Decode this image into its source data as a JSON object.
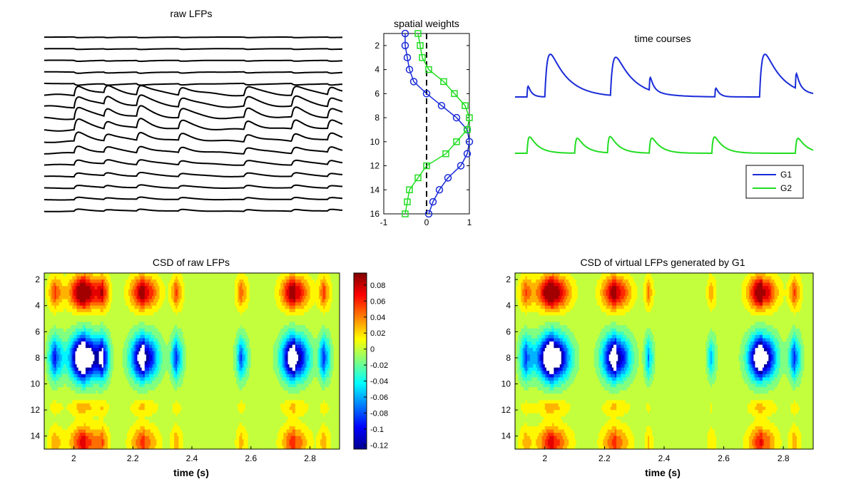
{
  "colors": {
    "g1": "#1a2bd8",
    "g2": "#22dd22",
    "lfp_trace": "#000000",
    "colormap": "jet",
    "peak_marker": "#ffffff"
  },
  "chart_data": [
    {
      "id": "raw-lfps",
      "type": "line",
      "title": "raw LFPs",
      "channels": 16,
      "axes_visible": false,
      "time_range": [
        1.9,
        2.9
      ],
      "event_times": [
        2.0,
        2.1,
        2.21,
        2.35,
        2.57,
        2.73,
        2.85
      ],
      "event_amplitudes": [
        1.0,
        0.75,
        0.95,
        0.8,
        0.85,
        0.9,
        0.8
      ]
    },
    {
      "id": "spatial-weights",
      "type": "line",
      "title": "spatial weights",
      "xlim": [
        -1,
        1
      ],
      "ylim": [
        16,
        1
      ],
      "y_reversed": true,
      "xticks": [
        "-1",
        "0",
        "1"
      ],
      "yticks": [
        "2",
        "4",
        "6",
        "8",
        "10",
        "12",
        "14",
        "16"
      ],
      "reference_line": {
        "x": 0,
        "style": "dashed"
      },
      "series": [
        {
          "name": "G1",
          "marker": "circle",
          "x": [
            -0.5,
            -0.5,
            -0.45,
            -0.4,
            -0.3,
            0.0,
            0.35,
            0.7,
            0.95,
            1.0,
            0.95,
            0.8,
            0.5,
            0.3,
            0.15,
            0.05
          ],
          "y": [
            1,
            2,
            3,
            4,
            5,
            6,
            7,
            8,
            9,
            10,
            11,
            12,
            13,
            14,
            15,
            16
          ]
        },
        {
          "name": "G2",
          "marker": "square",
          "x": [
            -0.2,
            -0.15,
            -0.1,
            0.05,
            0.4,
            0.65,
            0.9,
            1.0,
            0.95,
            0.7,
            0.45,
            0.0,
            -0.2,
            -0.4,
            -0.45,
            -0.5
          ],
          "y": [
            1,
            2,
            3,
            4,
            5,
            6,
            7,
            8,
            9,
            10,
            11,
            12,
            13,
            14,
            15,
            16
          ]
        }
      ]
    },
    {
      "id": "time-courses",
      "type": "line",
      "title": "time courses",
      "axes_visible": false,
      "time_range": [
        1.9,
        2.9
      ],
      "legend": {
        "position": "bottom-right",
        "entries": [
          "G1",
          "G2"
        ]
      },
      "series": [
        {
          "name": "G1",
          "baseline": 0,
          "peaks": [
            {
              "t": 1.94,
              "a": 0.25
            },
            {
              "t": 2.0,
              "a": 1.0
            },
            {
              "t": 2.22,
              "a": 0.9
            },
            {
              "t": 2.35,
              "a": 0.3
            },
            {
              "t": 2.57,
              "a": 0.2
            },
            {
              "t": 2.72,
              "a": 1.0
            },
            {
              "t": 2.84,
              "a": 0.35
            }
          ]
        },
        {
          "name": "G2",
          "baseline": 0,
          "peaks": [
            {
              "t": 1.94,
              "a": 0.6
            },
            {
              "t": 2.1,
              "a": 0.55
            },
            {
              "t": 2.21,
              "a": 0.6
            },
            {
              "t": 2.35,
              "a": 0.55
            },
            {
              "t": 2.56,
              "a": 0.6
            },
            {
              "t": 2.84,
              "a": 0.55
            }
          ]
        }
      ]
    },
    {
      "id": "csd-raw",
      "type": "heatmap",
      "title": "CSD of raw LFPs",
      "xlabel": "time (s)",
      "xlim": [
        1.9,
        2.9
      ],
      "ylim": [
        1.5,
        15
      ],
      "y_reversed": true,
      "xticks": [
        "2",
        "2.2",
        "2.4",
        "2.6",
        "2.8"
      ],
      "yticks": [
        "2",
        "4",
        "6",
        "8",
        "10",
        "12",
        "14"
      ],
      "events": [
        {
          "t": 1.94,
          "w": 0.025,
          "a": 0.55
        },
        {
          "t": 2.04,
          "w": 0.05,
          "a": 1.3
        },
        {
          "t": 2.1,
          "w": 0.02,
          "a": 0.6
        },
        {
          "t": 2.24,
          "w": 0.045,
          "a": 1.0
        },
        {
          "t": 2.35,
          "w": 0.02,
          "a": 0.55
        },
        {
          "t": 2.57,
          "w": 0.02,
          "a": 0.5
        },
        {
          "t": 2.75,
          "w": 0.045,
          "a": 1.05
        },
        {
          "t": 2.85,
          "w": 0.02,
          "a": 0.55
        }
      ]
    },
    {
      "id": "colorbar",
      "type": "heatmap",
      "range": [
        -0.125,
        0.095
      ],
      "ticks": [
        "0.08",
        "0.06",
        "0.04",
        "0.02",
        "0",
        "-0.02",
        "-0.04",
        "-0.06",
        "-0.08",
        "-0.1",
        "-0.12"
      ],
      "tick_values": [
        0.08,
        0.06,
        0.04,
        0.02,
        0,
        -0.02,
        -0.04,
        -0.06,
        -0.08,
        -0.1,
        -0.12
      ]
    },
    {
      "id": "csd-virtual",
      "type": "heatmap",
      "title": "CSD of virtual LFPs generated by G1",
      "xlabel": "time (s)",
      "xlim": [
        1.9,
        2.9
      ],
      "ylim": [
        1.5,
        15
      ],
      "y_reversed": true,
      "xticks": [
        "2",
        "2.2",
        "2.4",
        "2.6",
        "2.8"
      ],
      "yticks": [
        "2",
        "4",
        "6",
        "8",
        "10",
        "12",
        "14"
      ],
      "events": [
        {
          "t": 1.94,
          "w": 0.025,
          "a": 0.5
        },
        {
          "t": 2.03,
          "w": 0.05,
          "a": 1.3
        },
        {
          "t": 2.24,
          "w": 0.045,
          "a": 1.0
        },
        {
          "t": 2.35,
          "w": 0.015,
          "a": 0.4
        },
        {
          "t": 2.56,
          "w": 0.015,
          "a": 0.35
        },
        {
          "t": 2.73,
          "w": 0.045,
          "a": 1.15
        },
        {
          "t": 2.84,
          "w": 0.02,
          "a": 0.55
        }
      ]
    }
  ]
}
